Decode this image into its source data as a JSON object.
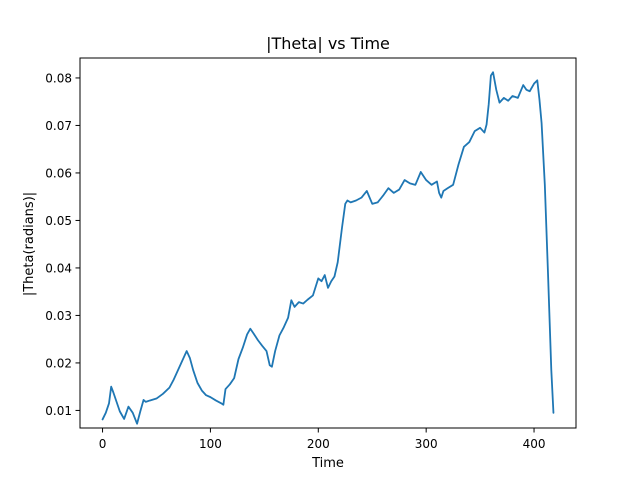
{
  "chart_data": {
    "type": "line",
    "title": "|Theta| vs Time",
    "xlabel": "Time",
    "ylabel": "|Theta(radians)|",
    "xlim": [
      -20.9,
      438.9
    ],
    "ylim": [
      0.0063,
      0.0842
    ],
    "xticks": [
      0,
      100,
      200,
      300,
      400
    ],
    "yticks": [
      0.01,
      0.02,
      0.03,
      0.04,
      0.05,
      0.06,
      0.07,
      0.08
    ],
    "ytick_labels": [
      "0.01",
      "0.02",
      "0.03",
      "0.04",
      "0.05",
      "0.06",
      "0.07",
      "0.08"
    ],
    "grid": false,
    "color": "#1f77b4",
    "series": [
      {
        "x": [
          0,
          3,
          6,
          8,
          10,
          13,
          16,
          20,
          24,
          28,
          32,
          35,
          38,
          40,
          44,
          50,
          56,
          62,
          66,
          70,
          74,
          78,
          81,
          84,
          88,
          92,
          96,
          100,
          105,
          110,
          112,
          114,
          118,
          122,
          126,
          130,
          134,
          137,
          140,
          144,
          148,
          152,
          155,
          157,
          160,
          164,
          168,
          172,
          175,
          178,
          182,
          186,
          190,
          195,
          200,
          203,
          206,
          209,
          212,
          215,
          218,
          222,
          225,
          227,
          230,
          235,
          240,
          245,
          250,
          255,
          260,
          265,
          270,
          275,
          280,
          285,
          290,
          295,
          300,
          305,
          310,
          312,
          314,
          316,
          320,
          325,
          330,
          335,
          340,
          345,
          350,
          354,
          356,
          358,
          360,
          362,
          365,
          368,
          372,
          376,
          380,
          385,
          390,
          393,
          396,
          400,
          403,
          405,
          407,
          410,
          413,
          416,
          418
        ],
        "y": [
          0.0081,
          0.0095,
          0.0115,
          0.015,
          0.0138,
          0.0118,
          0.0098,
          0.0082,
          0.0108,
          0.0095,
          0.0072,
          0.0098,
          0.0122,
          0.0118,
          0.0121,
          0.0125,
          0.0135,
          0.0148,
          0.0165,
          0.0185,
          0.0205,
          0.0225,
          0.021,
          0.0185,
          0.0158,
          0.0142,
          0.0132,
          0.0128,
          0.0121,
          0.0115,
          0.0112,
          0.0145,
          0.0155,
          0.0168,
          0.0208,
          0.0232,
          0.026,
          0.0272,
          0.0262,
          0.0248,
          0.0236,
          0.0225,
          0.0195,
          0.0192,
          0.0225,
          0.0258,
          0.0275,
          0.0295,
          0.0332,
          0.0318,
          0.0328,
          0.0325,
          0.0333,
          0.0342,
          0.0378,
          0.0372,
          0.0385,
          0.0358,
          0.0372,
          0.0382,
          0.0412,
          0.0485,
          0.0535,
          0.0542,
          0.0538,
          0.0542,
          0.0548,
          0.0562,
          0.0535,
          0.0538,
          0.0552,
          0.0568,
          0.0558,
          0.0565,
          0.0585,
          0.0578,
          0.0575,
          0.0602,
          0.0585,
          0.0575,
          0.0582,
          0.0558,
          0.0548,
          0.0562,
          0.0568,
          0.0575,
          0.0618,
          0.0655,
          0.0665,
          0.0688,
          0.0695,
          0.0685,
          0.0702,
          0.0745,
          0.0805,
          0.0812,
          0.0775,
          0.0748,
          0.0758,
          0.0752,
          0.0762,
          0.0758,
          0.0785,
          0.0775,
          0.0772,
          0.0788,
          0.0795,
          0.0755,
          0.0705,
          0.0575,
          0.0385,
          0.0185,
          0.0095
        ]
      }
    ]
  }
}
